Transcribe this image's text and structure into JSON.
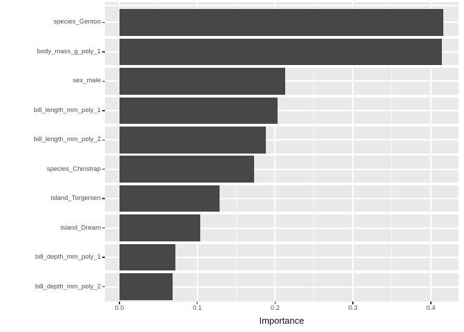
{
  "chart_data": {
    "type": "bar",
    "orientation": "horizontal",
    "title": "",
    "xlabel": "Importance",
    "ylabel": "",
    "categories": [
      "species_Gentoo",
      "body_mass_g_poly_1",
      "sex_male",
      "bill_length_mm_poly_1",
      "bill_length_mm_poly_2",
      "species_Chinstrap",
      "island_Torgersen",
      "island_Dream",
      "bill_depth_mm_poly_1",
      "bill_depth_mm_poly_2"
    ],
    "values": [
      0.416,
      0.414,
      0.213,
      0.203,
      0.188,
      0.173,
      0.129,
      0.104,
      0.072,
      0.068
    ],
    "bar_origin": 0.0,
    "x_ticks": [
      0.0,
      0.1,
      0.2,
      0.3,
      0.4
    ],
    "x_tick_decimals": 1,
    "x_minor_ticks": [
      0.05,
      0.15,
      0.25,
      0.35
    ],
    "xlim": [
      -0.0186,
      0.4355
    ],
    "grid": "major-and-minor-white",
    "legend": false,
    "theme": "ggplot-grey",
    "colors": {
      "bar": "#474747",
      "panel": "#e9e9e9",
      "grid": "#ffffff",
      "axis_text": "#4d4d4d",
      "axis_title": "#0d0d0d",
      "tick_mark": "#333333",
      "background": "#ffffff"
    }
  }
}
